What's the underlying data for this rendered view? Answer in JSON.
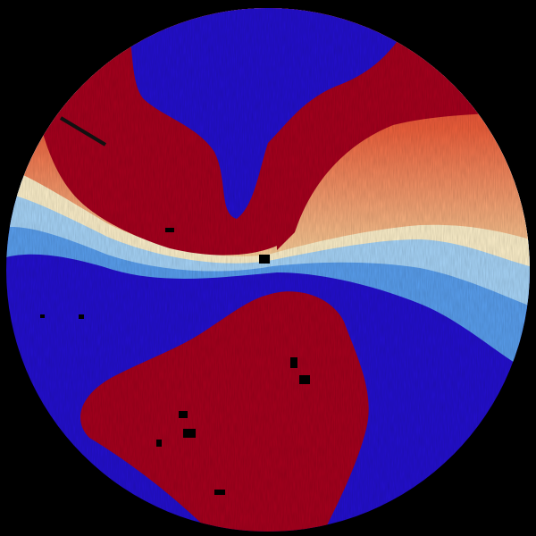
{
  "image": {
    "kind": "radar-velocity-ppi",
    "colors": {
      "background": "#000000",
      "inbound_strong": "#2410d0",
      "inbound_light": "#5aa0f0",
      "near_zero": "#fff4d0",
      "outbound_light": "#f07050",
      "outbound_strong": "#a8001e",
      "no_data": "#000000"
    }
  }
}
